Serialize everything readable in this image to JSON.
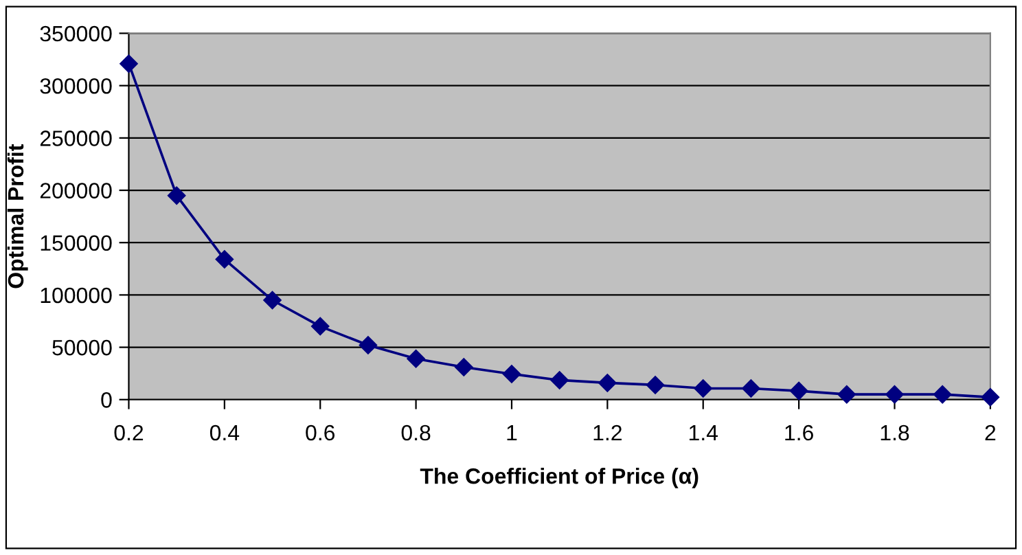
{
  "chart_data": {
    "type": "line",
    "xlabel": "The Coefficient of Price (α)",
    "ylabel": "Optimal Profit",
    "x": [
      0.2,
      0.3,
      0.4,
      0.5,
      0.6,
      0.7,
      0.8,
      0.9,
      1.0,
      1.1,
      1.2,
      1.3,
      1.4,
      1.5,
      1.6,
      1.7,
      1.8,
      1.9,
      2.0
    ],
    "series": [
      {
        "color": "#000080",
        "values": [
          321000,
          195000,
          134000,
          95000,
          70000,
          52000,
          39000,
          31000,
          24500,
          18600,
          16000,
          14000,
          10700,
          10700,
          8300,
          5000,
          5000,
          5000,
          2300
        ]
      }
    ],
    "xlim": [
      0.2,
      2
    ],
    "xticks": [
      0.2,
      0.4,
      0.6,
      0.8,
      1,
      1.2,
      1.4,
      1.6,
      1.8,
      2
    ],
    "ylim": [
      0,
      350000
    ],
    "yticks": [
      0,
      50000,
      100000,
      150000,
      200000,
      250000,
      300000,
      350000
    ],
    "grid": "y",
    "marker": "diamond",
    "line_style": "solid",
    "legend": false
  }
}
